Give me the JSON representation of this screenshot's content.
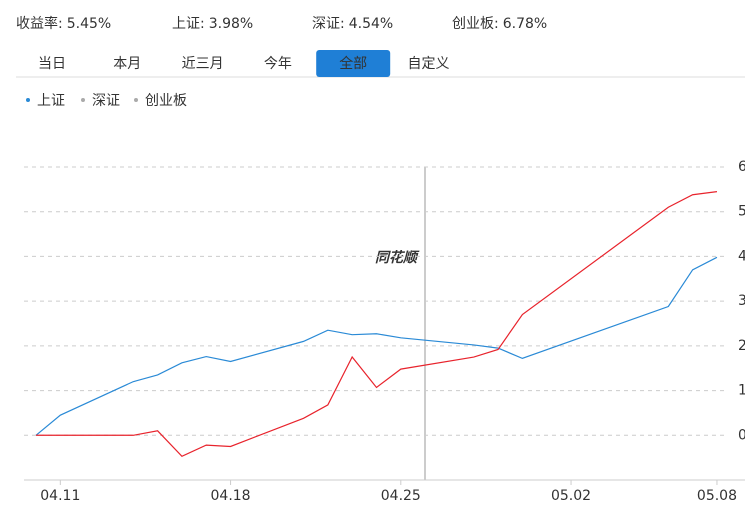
{
  "header": [
    {
      "label": "收益率:",
      "value": "5.45%"
    },
    {
      "label": "上证:",
      "value": "3.98%"
    },
    {
      "label": "深证:",
      "value": "4.54%"
    },
    {
      "label": "创业板:",
      "value": "6.78%"
    }
  ],
  "tabs": [
    "当日",
    "本月",
    "近三月",
    "今年",
    "全部",
    "自定义"
  ],
  "active_tab": 4,
  "legend_items": [
    "上证",
    "深证",
    "创业板"
  ],
  "active_legend": 0,
  "watermark": "同花顺",
  "chart_data": {
    "type": "line",
    "x": [
      "04.10",
      "04.11",
      "04.14",
      "04.15",
      "04.16",
      "04.17",
      "04.18",
      "04.21",
      "04.22",
      "04.23",
      "04.24",
      "04.25",
      "04.28",
      "04.29",
      "04.30",
      "05.06",
      "05.07",
      "05.08"
    ],
    "series": [
      {
        "name": "上证",
        "color": "#2a8ad6",
        "values": [
          0,
          0.45,
          1.2,
          1.35,
          1.62,
          1.76,
          1.65,
          2.1,
          2.35,
          2.25,
          2.27,
          2.18,
          2.02,
          1.95,
          1.72,
          2.88,
          3.7,
          3.98
        ]
      },
      {
        "name": "收益率",
        "color": "#e8232c",
        "values": [
          0,
          0,
          0,
          0.1,
          -0.47,
          -0.22,
          -0.25,
          0.38,
          0.68,
          1.75,
          1.07,
          1.48,
          1.75,
          1.92,
          2.7,
          5.1,
          5.38,
          5.45
        ]
      }
    ],
    "xticks": [
      "04.11",
      "04.18",
      "04.25",
      "05.02",
      "05.08"
    ],
    "ylim": [
      -1,
      6
    ],
    "yticks": [
      0,
      1,
      2,
      3,
      4,
      5,
      6
    ],
    "grid": true
  }
}
